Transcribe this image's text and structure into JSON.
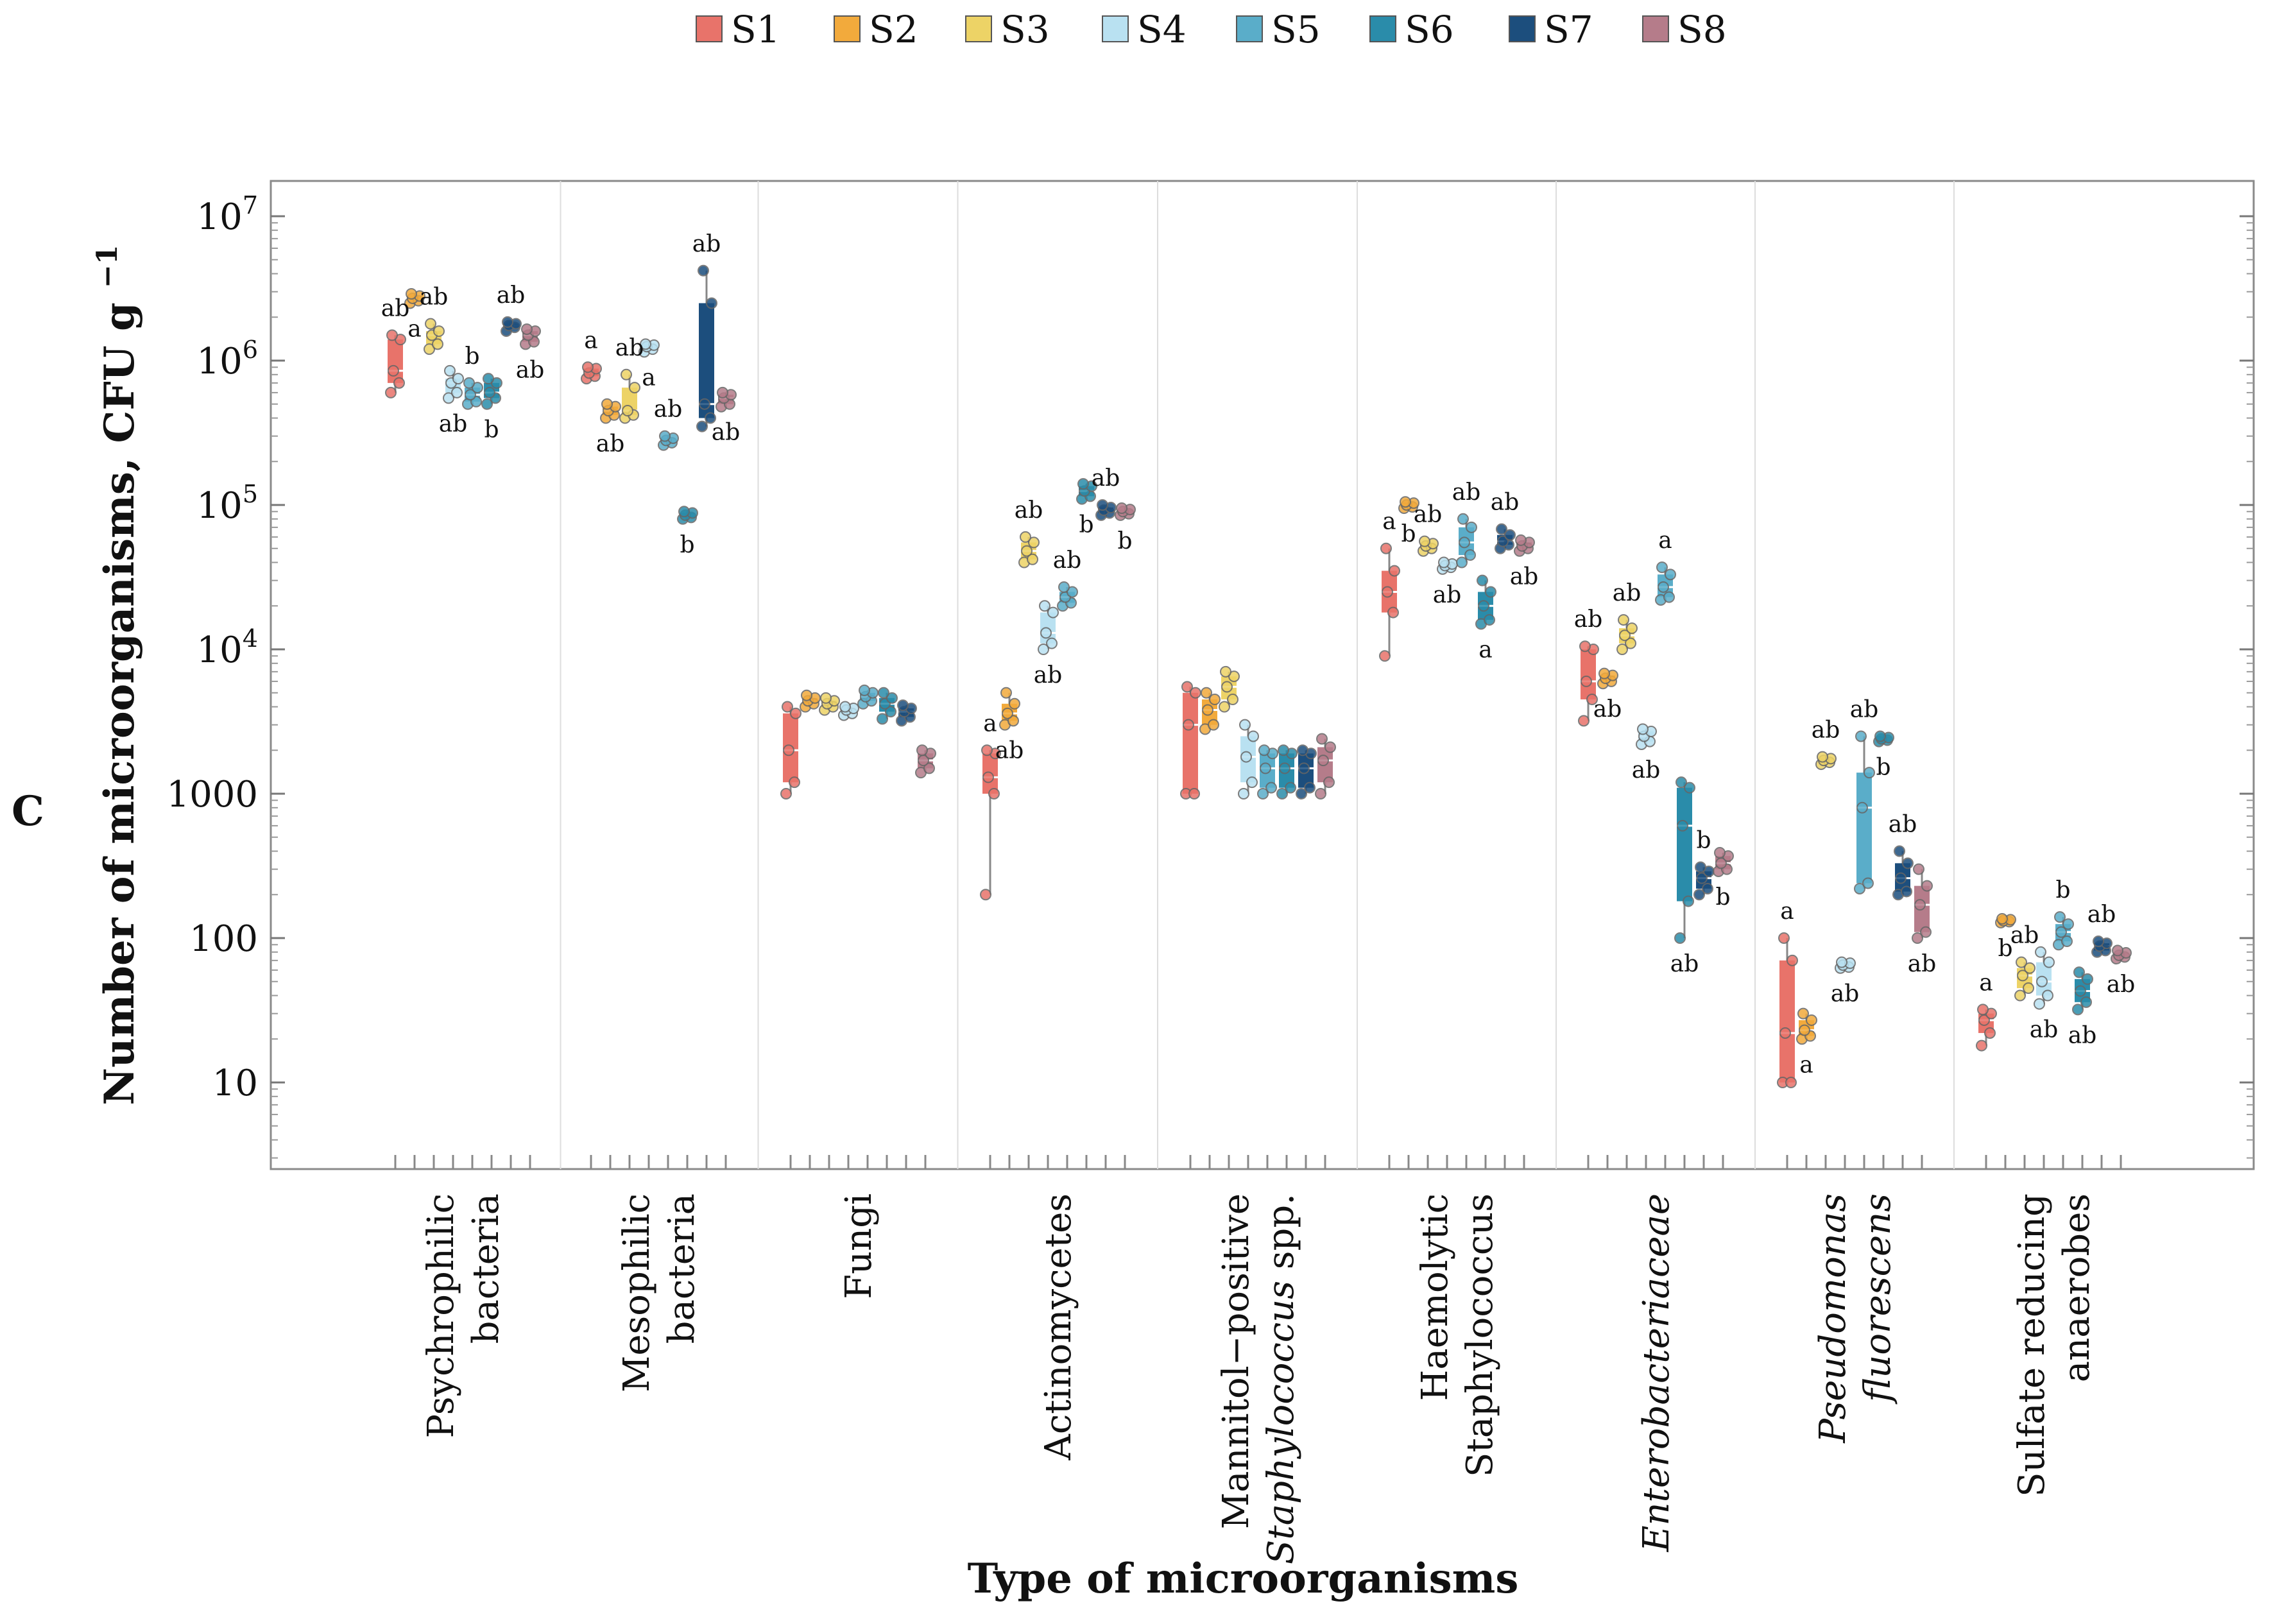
{
  "panel_label": "C",
  "legend": [
    {
      "label": "S1",
      "color": "#E8736A"
    },
    {
      "label": "S2",
      "color": "#F2AA3C"
    },
    {
      "label": "S3",
      "color": "#EDD366"
    },
    {
      "label": "S4",
      "color": "#B9E1F1"
    },
    {
      "label": "S5",
      "color": "#5AADC9"
    },
    {
      "label": "S6",
      "color": "#2A8CAA"
    },
    {
      "label": "S7",
      "color": "#1C4E7D"
    },
    {
      "label": "S8",
      "color": "#B57C8A"
    }
  ],
  "chart_data": {
    "type": "box",
    "title": "",
    "xlabel": "Type of microorganisms",
    "ylabel": "Number of microorganisms, CFU g",
    "ylabel_exponent": "−1",
    "yscale": "log",
    "ylim": [
      3,
      20000000
    ],
    "yticks": [
      {
        "value": 10,
        "base": "10",
        "exp": ""
      },
      {
        "value": 100,
        "base": "100",
        "exp": ""
      },
      {
        "value": 1000,
        "base": "1000",
        "exp": ""
      },
      {
        "value": 10000,
        "base": "10",
        "exp": "4"
      },
      {
        "value": 100000,
        "base": "10",
        "exp": "5"
      },
      {
        "value": 1000000,
        "base": "10",
        "exp": "6"
      },
      {
        "value": 10000000,
        "base": "10",
        "exp": "7"
      }
    ],
    "grid": false,
    "legend_position": "top-center",
    "series_names": [
      "S1",
      "S2",
      "S3",
      "S4",
      "S5",
      "S6",
      "S7",
      "S8"
    ],
    "categories": [
      {
        "lines": [
          {
            "text": "Psychrophilic",
            "italic": false
          },
          {
            "text": "bacteria",
            "italic": false
          }
        ],
        "samples": [
          {
            "min": 600000,
            "q1": 700000,
            "median": 850000,
            "q3": 1400000,
            "max": 1500000,
            "label": "ab"
          },
          {
            "min": 2500000,
            "q1": 2600000,
            "median": 2700000,
            "q3": 2800000,
            "max": 2900000,
            "label": "a"
          },
          {
            "min": 1200000,
            "q1": 1300000,
            "median": 1500000,
            "q3": 1600000,
            "max": 1800000,
            "label": "ab"
          },
          {
            "min": 550000,
            "q1": 600000,
            "median": 700000,
            "q3": 750000,
            "max": 850000,
            "label": "ab"
          },
          {
            "min": 500000,
            "q1": 520000,
            "median": 580000,
            "q3": 650000,
            "max": 700000,
            "label": "b"
          },
          {
            "min": 500000,
            "q1": 550000,
            "median": 600000,
            "q3": 700000,
            "max": 750000,
            "label": "b"
          },
          {
            "min": 1600000,
            "q1": 1700000,
            "median": 1750000,
            "q3": 1800000,
            "max": 1850000,
            "label": "ab"
          },
          {
            "min": 1300000,
            "q1": 1350000,
            "median": 1500000,
            "q3": 1600000,
            "max": 1650000,
            "label": "ab"
          }
        ]
      },
      {
        "lines": [
          {
            "text": "Mesophilic",
            "italic": false
          },
          {
            "text": "bacteria",
            "italic": false
          }
        ],
        "samples": [
          {
            "min": 750000,
            "q1": 780000,
            "median": 820000,
            "q3": 880000,
            "max": 900000,
            "label": "a"
          },
          {
            "min": 400000,
            "q1": 420000,
            "median": 450000,
            "q3": 480000,
            "max": 500000,
            "label": "ab"
          },
          {
            "min": 400000,
            "q1": 420000,
            "median": 450000,
            "q3": 650000,
            "max": 800000,
            "label": "ab"
          },
          {
            "min": 1150000,
            "q1": 1200000,
            "median": 1250000,
            "q3": 1280000,
            "max": 1300000,
            "label": "a"
          },
          {
            "min": 260000,
            "q1": 270000,
            "median": 280000,
            "q3": 290000,
            "max": 300000,
            "label": "ab"
          },
          {
            "min": 80000,
            "q1": 82000,
            "median": 85000,
            "q3": 88000,
            "max": 90000,
            "label": "b"
          },
          {
            "min": 350000,
            "q1": 400000,
            "median": 500000,
            "q3": 2500000,
            "max": 4200000,
            "label": "ab"
          },
          {
            "min": 480000,
            "q1": 500000,
            "median": 550000,
            "q3": 580000,
            "max": 600000,
            "label": "ab"
          }
        ]
      },
      {
        "lines": [
          {
            "text": "Fungi",
            "italic": false
          }
        ],
        "samples": [
          {
            "min": 1000,
            "q1": 1200,
            "median": 2000,
            "q3": 3600,
            "max": 4000,
            "label": ""
          },
          {
            "min": 4000,
            "q1": 4200,
            "median": 4400,
            "q3": 4600,
            "max": 4800,
            "label": ""
          },
          {
            "min": 3800,
            "q1": 4000,
            "median": 4200,
            "q3": 4400,
            "max": 4600,
            "label": ""
          },
          {
            "min": 3500,
            "q1": 3600,
            "median": 3800,
            "q3": 3900,
            "max": 4000,
            "label": ""
          },
          {
            "min": 4200,
            "q1": 4400,
            "median": 4700,
            "q3": 5000,
            "max": 5200,
            "label": ""
          },
          {
            "min": 3300,
            "q1": 3700,
            "median": 4200,
            "q3": 4600,
            "max": 5000,
            "label": ""
          },
          {
            "min": 3200,
            "q1": 3400,
            "median": 3700,
            "q3": 3900,
            "max": 4100,
            "label": ""
          },
          {
            "min": 1400,
            "q1": 1500,
            "median": 1700,
            "q3": 1900,
            "max": 2000,
            "label": ""
          }
        ]
      },
      {
        "lines": [
          {
            "text": "Actinomycetes",
            "italic": false
          }
        ],
        "samples": [
          {
            "min": 200,
            "q1": 1000,
            "median": 1300,
            "q3": 1900,
            "max": 2000,
            "label": "a"
          },
          {
            "min": 3000,
            "q1": 3200,
            "median": 3600,
            "q3": 4200,
            "max": 5000,
            "label": "ab"
          },
          {
            "min": 40000,
            "q1": 42000,
            "median": 48000,
            "q3": 55000,
            "max": 60000,
            "label": "ab"
          },
          {
            "min": 10000,
            "q1": 11000,
            "median": 13000,
            "q3": 18000,
            "max": 20000,
            "label": "ab"
          },
          {
            "min": 20000,
            "q1": 21000,
            "median": 23000,
            "q3": 25000,
            "max": 27000,
            "label": "ab"
          },
          {
            "min": 110000,
            "q1": 115000,
            "median": 125000,
            "q3": 135000,
            "max": 140000,
            "label": "b"
          },
          {
            "min": 85000,
            "q1": 88000,
            "median": 92000,
            "q3": 96000,
            "max": 100000,
            "label": "ab"
          },
          {
            "min": 85000,
            "q1": 87000,
            "median": 90000,
            "q3": 93000,
            "max": 95000,
            "label": "b"
          }
        ]
      },
      {
        "lines": [
          {
            "text": "Mannitol−positive",
            "italic": false
          },
          {
            "text": "Staphylococcus",
            "italic": true,
            "suffix": " spp."
          }
        ],
        "samples": [
          {
            "min": 1000,
            "q1": 1000,
            "median": 3000,
            "q3": 5000,
            "max": 5500,
            "label": ""
          },
          {
            "min": 2800,
            "q1": 3000,
            "median": 3800,
            "q3": 4500,
            "max": 5000,
            "label": ""
          },
          {
            "min": 4000,
            "q1": 4500,
            "median": 5500,
            "q3": 6500,
            "max": 7000,
            "label": ""
          },
          {
            "min": 1000,
            "q1": 1200,
            "median": 1800,
            "q3": 2500,
            "max": 3000,
            "label": ""
          },
          {
            "min": 1000,
            "q1": 1100,
            "median": 1500,
            "q3": 1900,
            "max": 2000,
            "label": ""
          },
          {
            "min": 1000,
            "q1": 1100,
            "median": 1500,
            "q3": 1900,
            "max": 2000,
            "label": ""
          },
          {
            "min": 1000,
            "q1": 1100,
            "median": 1500,
            "q3": 1900,
            "max": 2000,
            "label": ""
          },
          {
            "min": 1000,
            "q1": 1200,
            "median": 1700,
            "q3": 2100,
            "max": 2400,
            "label": ""
          }
        ]
      },
      {
        "lines": [
          {
            "text": "Haemolytic",
            "italic": false
          },
          {
            "text": "Staphylococcus",
            "italic": false
          }
        ],
        "samples": [
          {
            "min": 9000,
            "q1": 18000,
            "median": 25000,
            "q3": 35000,
            "max": 50000,
            "label": "a"
          },
          {
            "min": 95000,
            "q1": 97000,
            "median": 100000,
            "q3": 103000,
            "max": 105000,
            "label": "b"
          },
          {
            "min": 48000,
            "q1": 50000,
            "median": 52000,
            "q3": 54000,
            "max": 56000,
            "label": "ab"
          },
          {
            "min": 36000,
            "q1": 37000,
            "median": 38000,
            "q3": 39000,
            "max": 40000,
            "label": "ab"
          },
          {
            "min": 40000,
            "q1": 45000,
            "median": 55000,
            "q3": 70000,
            "max": 80000,
            "label": "ab"
          },
          {
            "min": 15000,
            "q1": 16000,
            "median": 20000,
            "q3": 25000,
            "max": 30000,
            "label": "a"
          },
          {
            "min": 50000,
            "q1": 53000,
            "median": 56000,
            "q3": 62000,
            "max": 68000,
            "label": "ab"
          },
          {
            "min": 48000,
            "q1": 50000,
            "median": 52000,
            "q3": 55000,
            "max": 57000,
            "label": "ab"
          }
        ]
      },
      {
        "lines": [
          {
            "text": "Enterobacteriaceae",
            "italic": true
          }
        ],
        "samples": [
          {
            "min": 3200,
            "q1": 4500,
            "median": 6000,
            "q3": 10000,
            "max": 10500,
            "label": "ab"
          },
          {
            "min": 5800,
            "q1": 6000,
            "median": 6300,
            "q3": 6600,
            "max": 6800,
            "label": "ab"
          },
          {
            "min": 10000,
            "q1": 11000,
            "median": 12500,
            "q3": 14000,
            "max": 16000,
            "label": "ab"
          },
          {
            "min": 2200,
            "q1": 2300,
            "median": 2500,
            "q3": 2700,
            "max": 2800,
            "label": "ab"
          },
          {
            "min": 22000,
            "q1": 23000,
            "median": 27000,
            "q3": 33000,
            "max": 37000,
            "label": "a"
          },
          {
            "min": 100,
            "q1": 180,
            "median": 600,
            "q3": 1100,
            "max": 1200,
            "label": "ab"
          },
          {
            "min": 200,
            "q1": 220,
            "median": 260,
            "q3": 290,
            "max": 310,
            "label": "b"
          },
          {
            "min": 290,
            "q1": 300,
            "median": 330,
            "q3": 370,
            "max": 390,
            "label": "b"
          }
        ]
      },
      {
        "lines": [
          {
            "text": "Pseudomonas",
            "italic": true
          },
          {
            "text": "fluorescens",
            "italic": true
          }
        ],
        "samples": [
          {
            "min": 10,
            "q1": 10,
            "median": 22,
            "q3": 70,
            "max": 100,
            "label": "a"
          },
          {
            "min": 20,
            "q1": 21,
            "median": 23,
            "q3": 27,
            "max": 30,
            "label": "a"
          },
          {
            "min": 1600,
            "q1": 1650,
            "median": 1700,
            "q3": 1750,
            "max": 1800,
            "label": "ab"
          },
          {
            "min": 62,
            "q1": 63,
            "median": 65,
            "q3": 67,
            "max": 68,
            "label": "ab"
          },
          {
            "min": 220,
            "q1": 240,
            "median": 800,
            "q3": 1400,
            "max": 2500,
            "label": "ab"
          },
          {
            "min": 2300,
            "q1": 2350,
            "median": 2400,
            "q3": 2450,
            "max": 2500,
            "label": "b"
          },
          {
            "min": 200,
            "q1": 210,
            "median": 260,
            "q3": 330,
            "max": 400,
            "label": "ab"
          },
          {
            "min": 100,
            "q1": 110,
            "median": 170,
            "q3": 230,
            "max": 300,
            "label": "ab"
          }
        ]
      },
      {
        "lines": [
          {
            "text": "Sulfate reducing",
            "italic": false
          },
          {
            "text": "anaerobes",
            "italic": false
          }
        ],
        "samples": [
          {
            "min": 18,
            "q1": 22,
            "median": 27,
            "q3": 30,
            "max": 32,
            "label": "a"
          },
          {
            "min": 128,
            "q1": 130,
            "median": 132,
            "q3": 134,
            "max": 136,
            "label": "b"
          },
          {
            "min": 40,
            "q1": 45,
            "median": 55,
            "q3": 62,
            "max": 68,
            "label": "ab"
          },
          {
            "min": 35,
            "q1": 40,
            "median": 50,
            "q3": 68,
            "max": 80,
            "label": "ab"
          },
          {
            "min": 90,
            "q1": 95,
            "median": 110,
            "q3": 125,
            "max": 140,
            "label": "b"
          },
          {
            "min": 32,
            "q1": 36,
            "median": 43,
            "q3": 52,
            "max": 58,
            "label": "ab"
          },
          {
            "min": 80,
            "q1": 82,
            "median": 88,
            "q3": 92,
            "max": 95,
            "label": "ab"
          },
          {
            "min": 72,
            "q1": 74,
            "median": 76,
            "q3": 79,
            "max": 82,
            "label": "ab"
          }
        ]
      }
    ]
  }
}
